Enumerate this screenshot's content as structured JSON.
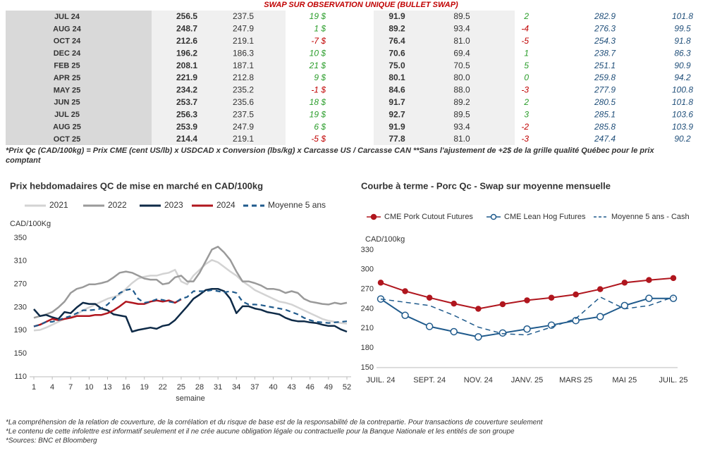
{
  "table": {
    "title": "SWAP SUR OBSERVATION UNIQUE (BULLET SWAP)",
    "rows": [
      [
        "JUL 24",
        "256.5",
        "237.5",
        "19 $",
        "91.9",
        "89.5",
        "2",
        "282.9",
        "101.8"
      ],
      [
        "AUG 24",
        "248.7",
        "247.9",
        "1 $",
        "89.2",
        "93.4",
        "-4",
        "276.3",
        "99.5"
      ],
      [
        "OCT 24",
        "212.6",
        "219.1",
        "-7 $",
        "76.4",
        "81.0",
        "-5",
        "254.3",
        "91.8"
      ],
      [
        "DEC 24",
        "196.2",
        "186.3",
        "10 $",
        "70.6",
        "69.4",
        "1",
        "238.7",
        "86.3"
      ],
      [
        "FEB 25",
        "208.1",
        "187.1",
        "21 $",
        "75.0",
        "70.5",
        "5",
        "251.1",
        "90.9"
      ],
      [
        "APR 25",
        "221.9",
        "212.8",
        "9 $",
        "80.1",
        "80.0",
        "0",
        "259.8",
        "94.2"
      ],
      [
        "MAY 25",
        "234.2",
        "235.2",
        "-1 $",
        "84.6",
        "88.0",
        "-3",
        "277.9",
        "100.8"
      ],
      [
        "JUN 25",
        "253.7",
        "235.6",
        "18 $",
        "91.7",
        "89.2",
        "2",
        "280.5",
        "101.8"
      ],
      [
        "JUL 25",
        "256.3",
        "237.5",
        "19 $",
        "92.7",
        "89.5",
        "3",
        "285.1",
        "103.6"
      ],
      [
        "AUG 25",
        "253.9",
        "247.9",
        "6 $",
        "91.9",
        "93.4",
        "-2",
        "285.8",
        "103.9"
      ],
      [
        "OCT 25",
        "214.4",
        "219.1",
        "-5 $",
        "77.8",
        "81.0",
        "-3",
        "247.4",
        "90.2"
      ]
    ]
  },
  "note": [
    "*Prix Qc (CAD/100kg) = Prix CME (cent US/lb) x USDCAD x Conversion (lbs/kg) x Carcasse US / Carcasse CAN **Sans l'ajustement de +2$ de la grille qualité Québec pour le prix",
    "comptant"
  ],
  "chart_data": [
    {
      "type": "line",
      "title": "Prix hebdomadaires QC de mise en marché en CAD/100kg",
      "y_label": "CAD/100Kg",
      "x_label": "semaine",
      "x": [
        1,
        2,
        3,
        4,
        5,
        6,
        7,
        8,
        9,
        10,
        11,
        12,
        13,
        14,
        15,
        16,
        17,
        18,
        19,
        20,
        21,
        22,
        23,
        24,
        25,
        26,
        27,
        28,
        29,
        30,
        31,
        32,
        33,
        34,
        35,
        36,
        37,
        38,
        39,
        40,
        41,
        42,
        43,
        44,
        45,
        46,
        47,
        48,
        49,
        50,
        51,
        52
      ],
      "xlim": [
        1,
        52
      ],
      "xticks": [
        1,
        4,
        7,
        10,
        13,
        16,
        19,
        22,
        25,
        28,
        31,
        34,
        37,
        40,
        43,
        46,
        49,
        52
      ],
      "ylim": [
        110,
        350
      ],
      "yticks": [
        110,
        150,
        190,
        230,
        270,
        310,
        350
      ],
      "grid": false,
      "series": [
        {
          "name": "2021",
          "color": "#d3d3d3",
          "dashed": false,
          "values": [
            190,
            191,
            195,
            200,
            205,
            210,
            213,
            218,
            225,
            230,
            235,
            240,
            245,
            248,
            252,
            262,
            272,
            280,
            283,
            285,
            285,
            288,
            290,
            295,
            275,
            270,
            285,
            295,
            305,
            312,
            308,
            300,
            292,
            285,
            275,
            268,
            260,
            255,
            250,
            245,
            240,
            238,
            235,
            230,
            225,
            220,
            215,
            210,
            207,
            205,
            203,
            202
          ]
        },
        {
          "name": "2022",
          "color": "#9a9a9a",
          "dashed": false,
          "values": [
            212,
            215,
            218,
            222,
            230,
            240,
            255,
            262,
            265,
            270,
            270,
            272,
            275,
            282,
            290,
            292,
            290,
            285,
            280,
            278,
            278,
            270,
            272,
            282,
            285,
            275,
            275,
            290,
            310,
            330,
            335,
            325,
            312,
            292,
            275,
            275,
            272,
            268,
            262,
            262,
            260,
            255,
            258,
            255,
            245,
            240,
            238,
            236,
            235,
            238,
            236,
            238
          ]
        },
        {
          "name": "2023",
          "color": "#0e2a47",
          "dashed": false,
          "values": [
            227,
            215,
            217,
            213,
            210,
            222,
            220,
            230,
            238,
            236,
            236,
            228,
            225,
            218,
            216,
            214,
            188,
            191,
            193,
            195,
            193,
            198,
            200,
            208,
            220,
            232,
            245,
            252,
            260,
            262,
            262,
            258,
            245,
            220,
            232,
            232,
            228,
            226,
            222,
            220,
            218,
            212,
            208,
            206,
            206,
            204,
            203,
            200,
            198,
            198,
            192,
            188
          ]
        },
        {
          "name": "2024",
          "color": "#b0161e",
          "dashed": false,
          "values": [
            197,
            200,
            205,
            210,
            208,
            210,
            212,
            215,
            215,
            215,
            217,
            217,
            220,
            225,
            232,
            240,
            238,
            236,
            236,
            240,
            242,
            240,
            242,
            238,
            244,
            null,
            null,
            null,
            null,
            null,
            null,
            null,
            null,
            null,
            null,
            null,
            null,
            null,
            null,
            null,
            null,
            null,
            null,
            null,
            null,
            null,
            null,
            null,
            null,
            null,
            null,
            null
          ]
        },
        {
          "name": "Moyenne 5 ans",
          "color": "#1f5a8c",
          "dashed": true,
          "values": [
            197,
            200,
            205,
            205,
            208,
            212,
            215,
            220,
            225,
            225,
            226,
            228,
            235,
            245,
            255,
            260,
            262,
            245,
            238,
            240,
            244,
            243,
            240,
            238,
            245,
            248,
            258,
            258,
            258,
            260,
            258,
            256,
            258,
            255,
            240,
            235,
            235,
            234,
            232,
            230,
            228,
            226,
            222,
            218,
            212,
            208,
            205,
            204,
            203,
            204,
            205,
            206
          ]
        }
      ]
    },
    {
      "type": "line",
      "title": "Courbe à terme - Porc Qc - Swap sur moyenne mensuelle",
      "y_label": "CAD/100kg",
      "categories": [
        "JUIL. 24",
        null,
        "SEPT. 24",
        null,
        "NOV. 24",
        null,
        "JANV. 25",
        null,
        "MARS 25",
        null,
        "MAI 25",
        null,
        "JUIL. 25"
      ],
      "ylim": [
        150,
        330
      ],
      "yticks": [
        150,
        180,
        210,
        240,
        270,
        300,
        330
      ],
      "grid": false,
      "series": [
        {
          "name": "CME Pork Cutout Futures",
          "color": "#b0161e",
          "dashed": false,
          "marker": "filled",
          "values": [
            280,
            267,
            257,
            248,
            240,
            247,
            253,
            257,
            262,
            270,
            280,
            284,
            287
          ]
        },
        {
          "name": "CME Lean Hog Futures",
          "color": "#1f5a8c",
          "dashed": false,
          "marker": "open",
          "values": [
            255,
            230,
            213,
            205,
            197,
            203,
            209,
            215,
            222,
            228,
            245,
            256,
            256
          ]
        },
        {
          "name": "Moyenne 5 ans - Cash",
          "color": "#1f5a8c",
          "dashed": true,
          "marker": "none",
          "values": [
            255,
            250,
            245,
            230,
            212,
            202,
            200,
            212,
            225,
            258,
            240,
            245,
            258
          ]
        }
      ]
    }
  ],
  "footer": [
    "*La compréhension de la relation de couverture, de la corrélation et du risque de base est de la responsabilité de la contrepartie. Pour transactions de couverture seulement",
    "*Le contenu de cette infolettre est informatif seulement et il ne crée aucune obligation légale ou contractuelle pour la Banque Nationale et les entités de son groupe",
    "*Sources: BNC et Bloomberg"
  ]
}
